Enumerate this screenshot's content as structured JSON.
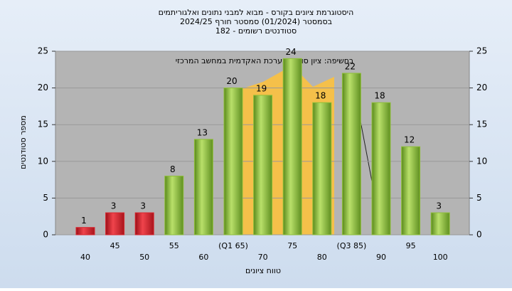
{
  "chart_data": {
    "type": "bar",
    "title": "היסטוגרמת ציונים בקורס - מבוא למבני נתונים ואלגוריתמים",
    "subtitle": [
      "בסמסטר  (01/2024)  סמסטר חורף 2024/25",
      "סטודנטים רשומים - 182"
    ],
    "annotation": "בחשיפה: ציון סופי במערכת האקדמית במחשב המרכזי",
    "xlabel": "טווח ציונים",
    "ylabel": "מספר סטודנטים",
    "categories": [
      "40",
      "45",
      "50",
      "55",
      "60",
      "(Q1 65)",
      "70",
      "75",
      "80",
      "(Q3 85)",
      "90",
      "95",
      "100"
    ],
    "values": [
      1,
      3,
      3,
      8,
      13,
      20,
      19,
      24,
      18,
      22,
      18,
      12,
      3
    ],
    "colors": [
      "#d9262e",
      "#d9262e",
      "#d9262e",
      "#8fbf3a",
      "#8fbf3a",
      "#8fbf3a",
      "#8fbf3a",
      "#8fbf3a",
      "#8fbf3a",
      "#8fbf3a",
      "#8fbf3a",
      "#8fbf3a",
      "#8fbf3a"
    ],
    "ylim": [
      0,
      25
    ],
    "yticks": [
      0,
      5,
      10,
      15,
      20,
      25
    ],
    "y2lim": [
      0,
      25
    ],
    "y2ticks": [
      0,
      5,
      10,
      15,
      20,
      25
    ],
    "grid": true
  }
}
